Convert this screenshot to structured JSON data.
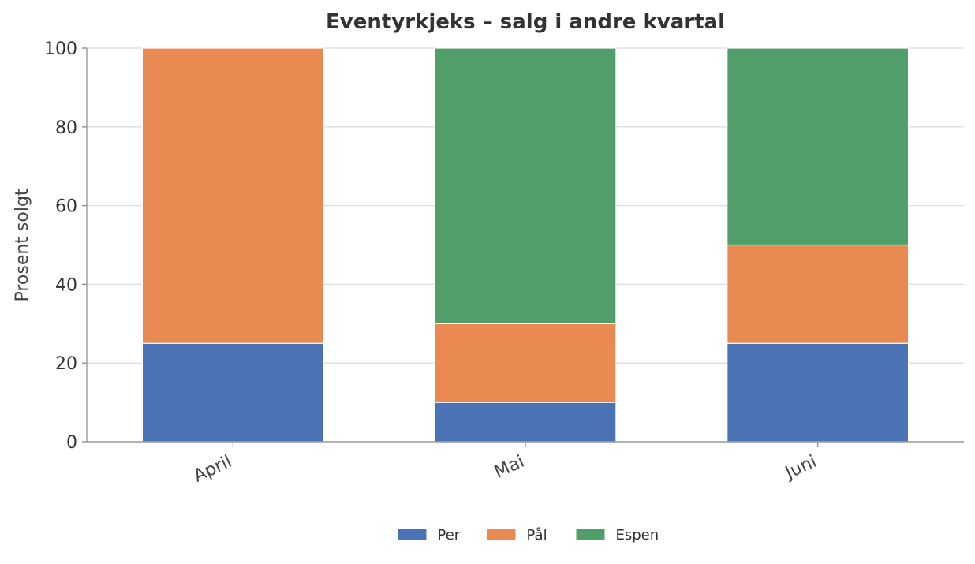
{
  "chart_data": {
    "type": "bar",
    "stacked": true,
    "title": "Eventyrkjeks – salg i andre kvartal",
    "xlabel": "",
    "ylabel": "Prosent solgt",
    "categories": [
      "April",
      "Mai",
      "Juni"
    ],
    "series": [
      {
        "name": "Per",
        "color": "#4a72b4",
        "values": [
          25,
          10,
          25
        ]
      },
      {
        "name": "Pål",
        "color": "#e88a51",
        "values": [
          75,
          20,
          25
        ]
      },
      {
        "name": "Espen",
        "color": "#529e6b",
        "values": [
          0,
          70,
          50
        ]
      }
    ],
    "ylim": [
      0,
      100
    ],
    "yticks": [
      "0",
      "20",
      "40",
      "60",
      "80",
      "100"
    ],
    "grid": true,
    "legend_position": "bottom-center"
  }
}
